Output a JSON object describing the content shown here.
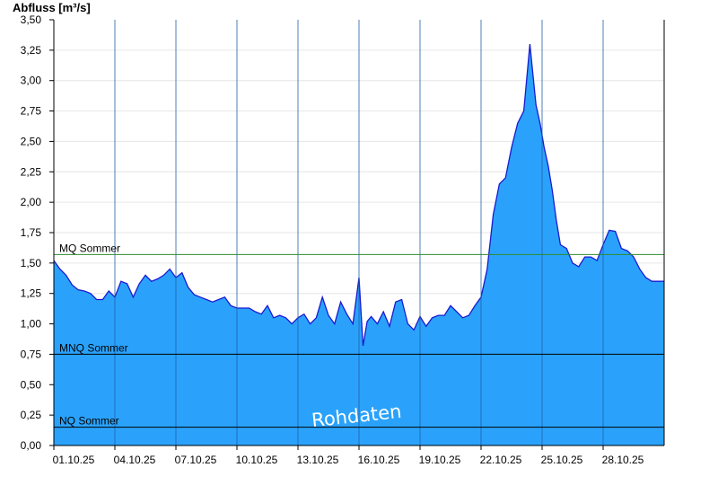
{
  "chart_data": {
    "type": "area",
    "ylabel": "Abfluss [m³/s]",
    "ylim": [
      0,
      3.5
    ],
    "yticks": [
      "0,00",
      "0,25",
      "0,50",
      "0,75",
      "1,00",
      "1,25",
      "1,50",
      "1,75",
      "2,00",
      "2,25",
      "2,50",
      "2,75",
      "3,00",
      "3,25",
      "3,50"
    ],
    "xticks": [
      "01.10.25",
      "04.10.25",
      "07.10.25",
      "10.10.25",
      "13.10.25",
      "16.10.25",
      "19.10.25",
      "22.10.25",
      "25.10.25",
      "28.10.25"
    ],
    "xtick_days": [
      0,
      3,
      6,
      9,
      12,
      15,
      18,
      21,
      24,
      27
    ],
    "xlim_days": [
      0,
      30
    ],
    "grid": true,
    "watermark": "Rohdaten",
    "colors": {
      "fill": "#2aa2fb",
      "line": "#1a1ad0",
      "mq": "#2e8b2e",
      "ref": "#000000"
    },
    "reference_lines": [
      {
        "name": "MQ Sommer",
        "value": 1.57
      },
      {
        "name": "MNQ Sommer",
        "value": 0.75
      },
      {
        "name": "NQ Sommer",
        "value": 0.15
      }
    ],
    "series": [
      {
        "x": [
          0,
          0.3,
          0.6,
          0.9,
          1.2,
          1.5,
          1.8,
          2.1,
          2.4,
          2.7,
          3.0,
          3.3,
          3.6,
          3.9,
          4.2,
          4.5,
          4.8,
          5.1,
          5.4,
          5.7,
          6.0,
          6.3,
          6.6,
          6.9,
          7.2,
          7.5,
          7.8,
          8.1,
          8.4,
          8.7,
          9.0,
          9.3,
          9.6,
          9.9,
          10.2,
          10.5,
          10.8,
          11.1,
          11.4,
          11.7,
          12.0,
          12.3,
          12.6,
          12.9,
          13.2,
          13.5,
          13.8,
          14.1,
          14.4,
          14.7,
          15.0,
          15.2,
          15.4,
          15.6,
          15.9,
          16.2,
          16.5,
          16.8,
          17.1,
          17.4,
          17.7,
          18.0,
          18.3,
          18.6,
          18.9,
          19.2,
          19.5,
          19.8,
          20.1,
          20.4,
          20.7,
          21.0,
          21.3,
          21.6,
          21.9,
          22.2,
          22.5,
          22.8,
          23.1,
          23.4,
          23.7,
          23.9,
          24.1,
          24.3,
          24.5,
          24.7,
          24.9,
          25.2,
          25.5,
          25.8,
          26.1,
          26.4,
          26.7,
          27.0,
          27.3,
          27.6,
          27.9,
          28.2,
          28.5,
          28.8,
          29.1,
          29.4,
          29.7,
          30.0
        ],
        "y": [
          1.52,
          1.45,
          1.4,
          1.32,
          1.28,
          1.27,
          1.25,
          1.2,
          1.2,
          1.27,
          1.22,
          1.35,
          1.33,
          1.22,
          1.33,
          1.4,
          1.35,
          1.37,
          1.4,
          1.45,
          1.38,
          1.42,
          1.3,
          1.24,
          1.22,
          1.2,
          1.18,
          1.2,
          1.22,
          1.15,
          1.13,
          1.13,
          1.13,
          1.1,
          1.08,
          1.15,
          1.05,
          1.07,
          1.05,
          1.0,
          1.05,
          1.08,
          1.0,
          1.05,
          1.22,
          1.07,
          1.0,
          1.18,
          1.08,
          1.0,
          1.38,
          0.82,
          1.02,
          1.06,
          1.0,
          1.1,
          0.98,
          1.18,
          1.2,
          1.0,
          0.95,
          1.06,
          0.98,
          1.05,
          1.07,
          1.07,
          1.15,
          1.1,
          1.05,
          1.07,
          1.15,
          1.22,
          1.45,
          1.9,
          2.15,
          2.2,
          2.45,
          2.65,
          2.75,
          3.3,
          2.8,
          2.65,
          2.45,
          2.3,
          2.1,
          1.85,
          1.65,
          1.62,
          1.5,
          1.47,
          1.55,
          1.55,
          1.52,
          1.65,
          1.77,
          1.76,
          1.62,
          1.6,
          1.55,
          1.45,
          1.38,
          1.35,
          1.35,
          1.35
        ]
      }
    ]
  }
}
